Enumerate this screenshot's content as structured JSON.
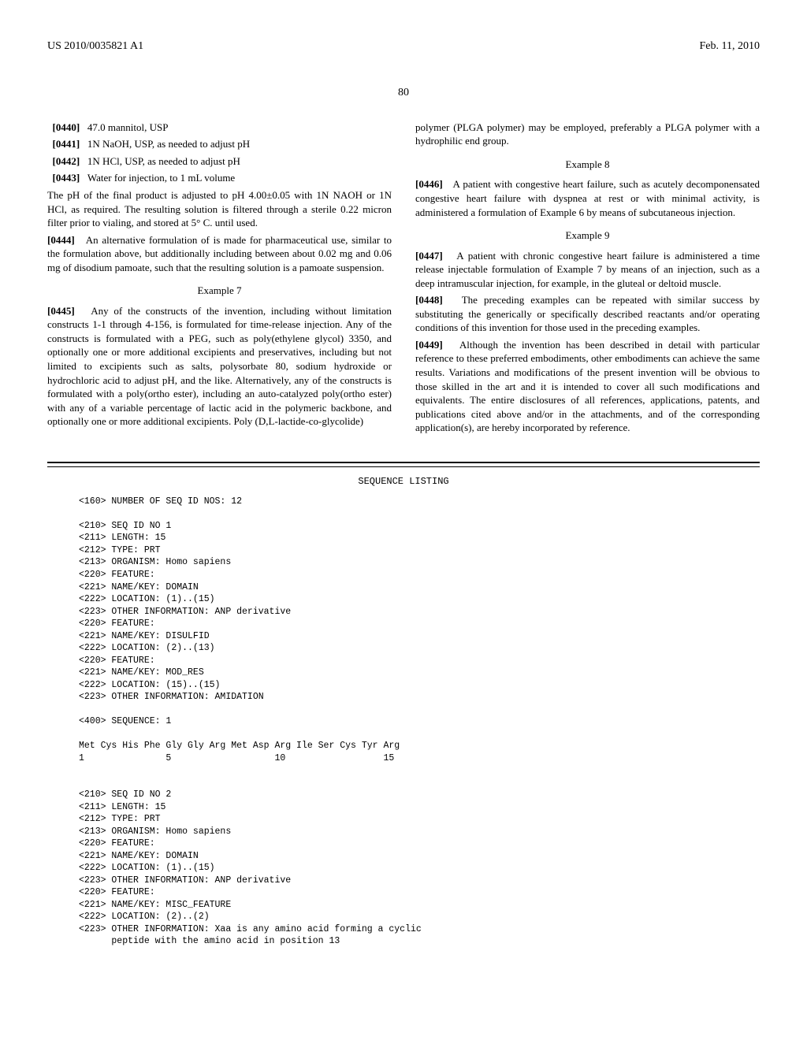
{
  "header": {
    "pub_number": "US 2010/0035821 A1",
    "pub_date": "Feb. 11, 2010"
  },
  "page_number": "80",
  "left_col": {
    "p0440": {
      "label": "[0440]",
      "text": "47.0 mannitol, USP"
    },
    "p0441": {
      "label": "[0441]",
      "text": "1N NaOH, USP, as needed to adjust pH"
    },
    "p0442": {
      "label": "[0442]",
      "text": "1N HCl, USP, as needed to adjust pH"
    },
    "p0443": {
      "label": "[0443]",
      "text": "Water for injection, to 1 mL volume"
    },
    "after_0443": "The pH of the final product is adjusted to pH 4.00±0.05 with 1N NAOH or 1N HCl, as required. The resulting solution is filtered through a sterile 0.22 micron filter prior to vialing, and stored at 5° C. until used.",
    "p0444": {
      "label": "[0444]",
      "text": "An alternative formulation of is made for pharmaceutical use, similar to the formulation above, but additionally including between about 0.02 mg and 0.06 mg of disodium pamoate, such that the resulting solution is a pamoate suspension."
    },
    "example7_heading": "Example 7",
    "p0445": {
      "label": "[0445]",
      "text": "Any of the constructs of the invention, including without limitation constructs 1-1 through 4-156, is formulated for time-release injection. Any of the constructs is formulated with a PEG, such as poly(ethylene glycol) 3350, and optionally one or more additional excipients and preservatives, including but not limited to excipients such as salts, polysorbate 80, sodium hydroxide or hydrochloric acid to adjust pH, and the like. Alternatively, any of the constructs is formulated with a poly(ortho ester), including an auto-catalyzed poly(ortho ester) with any of a variable percentage of lactic acid in the polymeric backbone, and optionally one or more additional excipients. Poly (D,L-lactide-co-glycolide)"
    }
  },
  "right_col": {
    "top": "polymer (PLGA polymer) may be employed, preferably a PLGA polymer with a hydrophilic end group.",
    "example8_heading": "Example 8",
    "p0446": {
      "label": "[0446]",
      "text": "A patient with congestive heart failure, such as acutely decomponensated congestive heart failure with dyspnea at rest or with minimal activity, is administered a formulation of Example 6 by means of subcutaneous injection."
    },
    "example9_heading": "Example 9",
    "p0447": {
      "label": "[0447]",
      "text": "A patient with chronic congestive heart failure is administered a time release injectable formulation of Example 7 by means of an injection, such as a deep intramuscular injection, for example, in the gluteal or deltoid muscle."
    },
    "p0448": {
      "label": "[0448]",
      "text": "The preceding examples can be repeated with similar success by substituting the generically or specifically described reactants and/or operating conditions of this invention for those used in the preceding examples."
    },
    "p0449": {
      "label": "[0449]",
      "text": "Although the invention has been described in detail with particular reference to these preferred embodiments, other embodiments can achieve the same results. Variations and modifications of the present invention will be obvious to those skilled in the art and it is intended to cover all such modifications and equivalents. The entire disclosures of all references, applications, patents, and publications cited above and/or in the attachments, and of the corresponding application(s), are hereby incorporated by reference."
    }
  },
  "seq_listing": {
    "title": "SEQUENCE LISTING",
    "block1": "<160> NUMBER OF SEQ ID NOS: 12\n\n<210> SEQ ID NO 1\n<211> LENGTH: 15\n<212> TYPE: PRT\n<213> ORGANISM: Homo sapiens\n<220> FEATURE:\n<221> NAME/KEY: DOMAIN\n<222> LOCATION: (1)..(15)\n<223> OTHER INFORMATION: ANP derivative\n<220> FEATURE:\n<221> NAME/KEY: DISULFID\n<222> LOCATION: (2)..(13)\n<220> FEATURE:\n<221> NAME/KEY: MOD_RES\n<222> LOCATION: (15)..(15)\n<223> OTHER INFORMATION: AMIDATION\n\n<400> SEQUENCE: 1\n\nMet Cys His Phe Gly Gly Arg Met Asp Arg Ile Ser Cys Tyr Arg\n1               5                   10                  15\n\n\n<210> SEQ ID NO 2\n<211> LENGTH: 15\n<212> TYPE: PRT\n<213> ORGANISM: Homo sapiens\n<220> FEATURE:\n<221> NAME/KEY: DOMAIN\n<222> LOCATION: (1)..(15)\n<223> OTHER INFORMATION: ANP derivative\n<220> FEATURE:\n<221> NAME/KEY: MISC_FEATURE\n<222> LOCATION: (2)..(2)\n<223> OTHER INFORMATION: Xaa is any amino acid forming a cyclic\n      peptide with the amino acid in position 13"
  }
}
